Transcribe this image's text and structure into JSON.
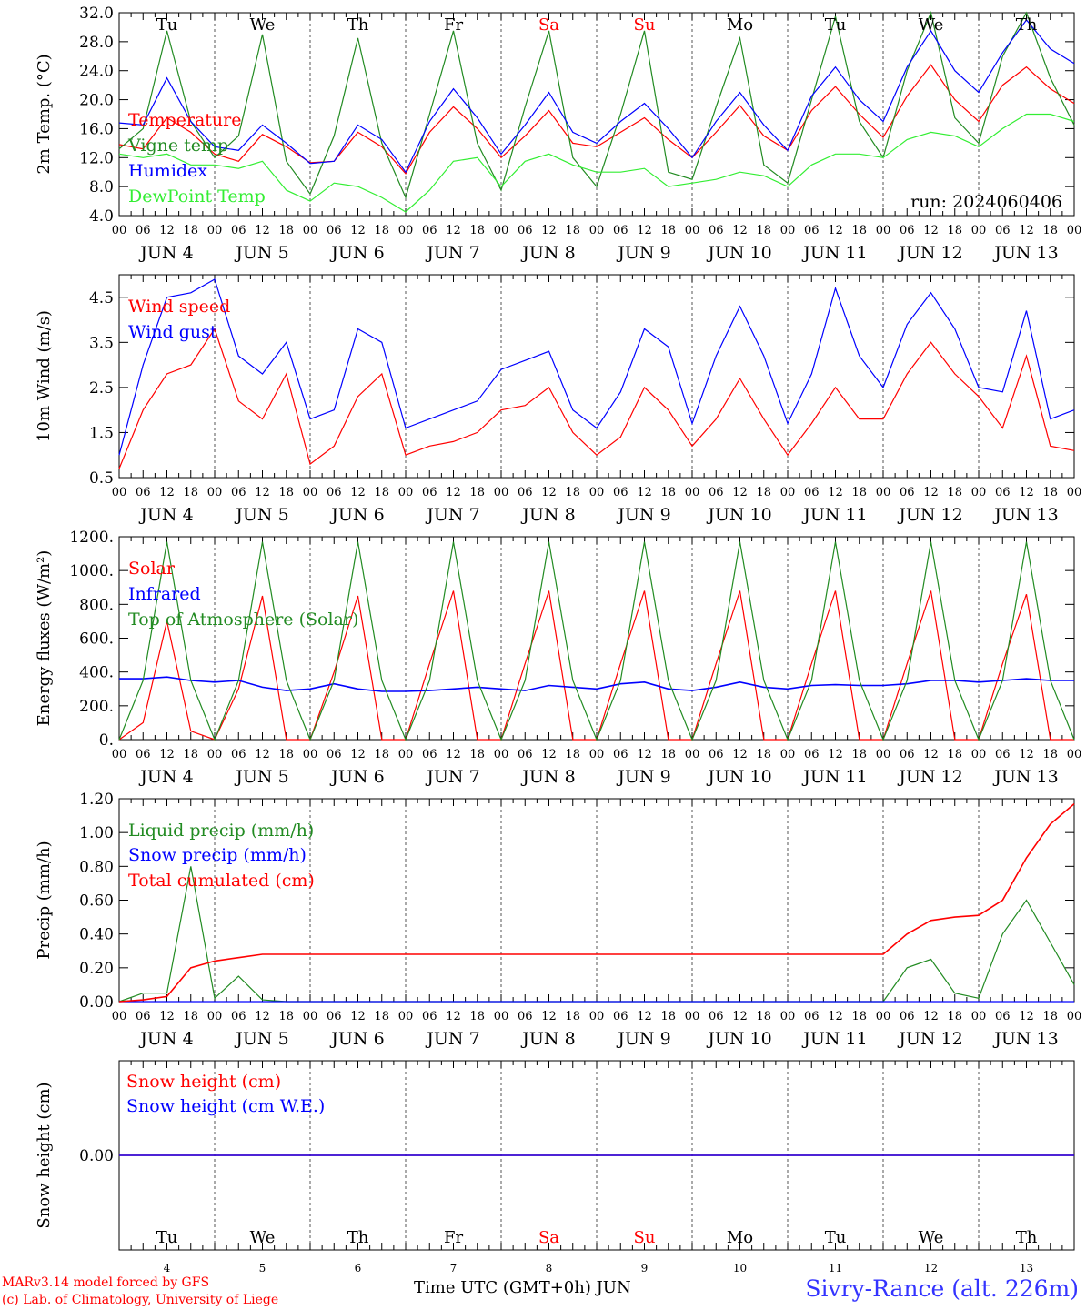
{
  "days": {
    "dates": [
      "4",
      "5",
      "6",
      "7",
      "8",
      "9",
      "10",
      "11",
      "12",
      "13"
    ],
    "weekday_labels": [
      "Tu",
      "We",
      "Th",
      "Fr",
      "Sa",
      "Su",
      "Mo",
      "Tu",
      "We",
      "Th"
    ],
    "weekday_colors": [
      "#000000",
      "#000000",
      "#000000",
      "#000000",
      "#ff0000",
      "#ff0000",
      "#000000",
      "#000000",
      "#000000",
      "#000000"
    ],
    "hour_ticks": [
      "00",
      "06",
      "12",
      "18"
    ],
    "month": "JUN",
    "final_hour_label": "00"
  },
  "colors": {
    "red": "#ff0000",
    "green": "#228b22",
    "blue": "#0000ff",
    "lightgreen": "#33ee33",
    "purple": "#800080",
    "grid": "#555555"
  },
  "chart_data": [
    {
      "type": "line",
      "ylabel": "2m Temp. (°C)",
      "ylim": [
        4.0,
        32.0
      ],
      "yticks": [
        "4.0",
        "8.0",
        "12.0",
        "16.0",
        "20.0",
        "24.0",
        "28.0",
        "32.0"
      ],
      "run_label": "run: 2024060406",
      "x_hours": [
        0,
        6,
        12,
        18,
        24,
        30,
        36,
        42,
        48,
        54,
        60,
        66,
        72,
        78,
        84,
        90,
        96,
        102,
        108,
        114,
        120,
        126,
        132,
        138,
        144,
        150,
        156,
        162,
        168,
        174,
        180,
        186,
        192,
        198,
        204,
        210,
        216,
        222,
        228,
        234,
        240
      ],
      "series": [
        {
          "name": "Temperature",
          "color": "#ff0000",
          "values": [
            13.8,
            13.2,
            17.5,
            15.5,
            12.5,
            11.5,
            15.2,
            13.5,
            11.3,
            11.5,
            15.5,
            13.5,
            9.8,
            15.5,
            19.0,
            16.0,
            12.0,
            15.0,
            18.5,
            14.0,
            13.5,
            15.5,
            17.5,
            14.5,
            12.0,
            15.5,
            19.2,
            15.0,
            13.0,
            18.5,
            21.8,
            18.0,
            14.8,
            20.5,
            24.8,
            20.0,
            17.0,
            22.0,
            24.5,
            21.5,
            19.5
          ]
        },
        {
          "name": "Vigne temp",
          "color": "#228b22",
          "values": [
            13.2,
            16.0,
            29.5,
            17.0,
            12.0,
            15.0,
            29.0,
            11.5,
            7.0,
            15.0,
            28.5,
            14.0,
            6.5,
            18.0,
            29.5,
            14.0,
            7.5,
            19.0,
            29.5,
            12.0,
            8.0,
            18.0,
            29.5,
            10.0,
            9.0,
            19.0,
            28.5,
            11.0,
            8.5,
            20.0,
            31.5,
            17.0,
            12.0,
            24.0,
            32.0,
            17.5,
            14.0,
            26.0,
            32.0,
            23.0,
            16.5
          ]
        },
        {
          "name": "Humidex",
          "color": "#0000ff",
          "values": [
            16.8,
            16.5,
            23.0,
            17.0,
            13.5,
            13.0,
            16.5,
            14.0,
            11.2,
            11.5,
            16.5,
            14.5,
            10.0,
            17.0,
            21.5,
            17.5,
            12.5,
            16.5,
            21.0,
            15.5,
            14.0,
            17.0,
            19.5,
            16.0,
            12.0,
            17.0,
            21.0,
            16.5,
            13.0,
            20.5,
            24.5,
            20.0,
            17.0,
            24.5,
            29.5,
            24.0,
            21.0,
            26.5,
            31.0,
            27.0,
            25.0
          ]
        },
        {
          "name": "DewPoint Temp",
          "color": "#33ee33",
          "values": [
            12.5,
            12.0,
            12.5,
            11.0,
            11.0,
            10.5,
            11.5,
            7.5,
            6.0,
            8.5,
            8.0,
            6.5,
            4.5,
            7.5,
            11.5,
            12.0,
            8.0,
            11.5,
            12.5,
            11.0,
            10.0,
            10.0,
            10.5,
            8.0,
            8.5,
            9.0,
            10.0,
            9.5,
            8.0,
            11.0,
            12.5,
            12.5,
            12.0,
            14.5,
            15.5,
            15.0,
            13.5,
            16.0,
            18.0,
            18.0,
            17.0
          ]
        }
      ]
    },
    {
      "type": "line",
      "ylabel": "10m Wind (m/s)",
      "ylim": [
        0.5,
        5.0
      ],
      "yticks": [
        "0.5",
        "1.5",
        "2.5",
        "3.5",
        "4.5"
      ],
      "x_hours": [
        0,
        6,
        12,
        18,
        24,
        30,
        36,
        42,
        48,
        54,
        60,
        66,
        72,
        78,
        84,
        90,
        96,
        102,
        108,
        114,
        120,
        126,
        132,
        138,
        144,
        150,
        156,
        162,
        168,
        174,
        180,
        186,
        192,
        198,
        204,
        210,
        216,
        222,
        228,
        234,
        240
      ],
      "series": [
        {
          "name": "Wind speed",
          "color": "#ff0000",
          "values": [
            0.7,
            2.0,
            2.8,
            3.0,
            3.8,
            2.2,
            1.8,
            2.8,
            0.8,
            1.2,
            2.3,
            2.8,
            1.0,
            1.2,
            1.3,
            1.5,
            2.0,
            2.1,
            2.5,
            1.5,
            1.0,
            1.4,
            2.5,
            2.0,
            1.2,
            1.8,
            2.7,
            1.8,
            1.0,
            1.7,
            2.5,
            1.8,
            1.8,
            2.8,
            3.5,
            2.8,
            2.3,
            1.6,
            3.2,
            1.2,
            1.1
          ]
        },
        {
          "name": "Wind gust",
          "color": "#0000ff",
          "values": [
            1.0,
            3.0,
            4.5,
            4.6,
            4.9,
            3.2,
            2.8,
            3.5,
            1.8,
            2.0,
            3.8,
            3.5,
            1.6,
            1.8,
            2.0,
            2.2,
            2.9,
            3.1,
            3.3,
            2.0,
            1.6,
            2.4,
            3.8,
            3.4,
            1.7,
            3.2,
            4.3,
            3.2,
            1.7,
            2.8,
            4.7,
            3.2,
            2.5,
            3.9,
            4.6,
            3.8,
            2.5,
            2.4,
            4.2,
            1.8,
            2.0
          ]
        }
      ]
    },
    {
      "type": "line",
      "ylabel": "Energy fluxes (W/m²)",
      "ylim": [
        0,
        1200
      ],
      "yticks": [
        "0.",
        "200.",
        "400.",
        "600.",
        "800.",
        "1000.",
        "1200."
      ],
      "x_hours": [
        0,
        6,
        12,
        18,
        24,
        30,
        36,
        42,
        48,
        54,
        60,
        66,
        72,
        78,
        84,
        90,
        96,
        102,
        108,
        114,
        120,
        126,
        132,
        138,
        144,
        150,
        156,
        162,
        168,
        174,
        180,
        186,
        192,
        198,
        204,
        210,
        216,
        222,
        228,
        234,
        240
      ],
      "series": [
        {
          "name": "Solar",
          "color": "#ff0000",
          "values": [
            0,
            100,
            700,
            50,
            0,
            300,
            850,
            0,
            0,
            400,
            850,
            0,
            0,
            450,
            880,
            0,
            0,
            450,
            880,
            0,
            0,
            450,
            880,
            0,
            0,
            450,
            880,
            0,
            0,
            450,
            880,
            0,
            0,
            450,
            880,
            0,
            0,
            450,
            860,
            0,
            0
          ]
        },
        {
          "name": "Infrared",
          "color": "#0000ff",
          "values": [
            360,
            360,
            370,
            350,
            340,
            350,
            310,
            290,
            300,
            330,
            300,
            285,
            285,
            290,
            300,
            310,
            300,
            290,
            320,
            310,
            300,
            330,
            340,
            300,
            290,
            310,
            340,
            310,
            300,
            320,
            325,
            320,
            320,
            330,
            350,
            350,
            340,
            350,
            360,
            350,
            350
          ]
        },
        {
          "name": "Top of Atmosphere (Solar)",
          "color": "#228b22",
          "values": [
            0,
            350,
            1170,
            350,
            0,
            350,
            1170,
            350,
            0,
            350,
            1170,
            350,
            0,
            350,
            1170,
            350,
            0,
            350,
            1170,
            350,
            0,
            350,
            1170,
            350,
            0,
            350,
            1170,
            350,
            0,
            350,
            1170,
            350,
            0,
            350,
            1170,
            350,
            0,
            350,
            1170,
            350,
            0
          ]
        }
      ]
    },
    {
      "type": "line",
      "ylabel": "Precip (mm/h)",
      "ylim": [
        0.0,
        1.2
      ],
      "yticks": [
        "0.00",
        "0.20",
        "0.40",
        "0.60",
        "0.80",
        "1.00",
        "1.20"
      ],
      "x_hours": [
        0,
        6,
        12,
        18,
        24,
        30,
        36,
        42,
        48,
        54,
        60,
        66,
        72,
        78,
        84,
        90,
        96,
        102,
        108,
        114,
        120,
        126,
        132,
        138,
        144,
        150,
        156,
        162,
        168,
        174,
        180,
        186,
        192,
        198,
        204,
        210,
        216,
        222,
        228,
        234,
        240
      ],
      "series": [
        {
          "name": "Liquid precip (mm/h)",
          "color": "#228b22",
          "values": [
            0,
            0.05,
            0.05,
            0.8,
            0.02,
            0.15,
            0.01,
            0,
            0,
            0,
            0,
            0,
            0,
            0,
            0,
            0,
            0,
            0,
            0,
            0,
            0,
            0,
            0,
            0,
            0,
            0,
            0,
            0,
            0,
            0,
            0,
            0,
            0,
            0.2,
            0.25,
            0.05,
            0.02,
            0.4,
            0.6,
            0.35,
            0.1
          ]
        },
        {
          "name": "Snow precip (mm/h)",
          "color": "#0000ff",
          "values": [
            0,
            0,
            0,
            0,
            0,
            0,
            0,
            0,
            0,
            0,
            0,
            0,
            0,
            0,
            0,
            0,
            0,
            0,
            0,
            0,
            0,
            0,
            0,
            0,
            0,
            0,
            0,
            0,
            0,
            0,
            0,
            0,
            0,
            0,
            0,
            0,
            0,
            0,
            0,
            0,
            0
          ]
        },
        {
          "name": "Total cumulated (cm)",
          "color": "#ff0000",
          "values": [
            0,
            0.01,
            0.03,
            0.2,
            0.24,
            0.26,
            0.28,
            0.28,
            0.28,
            0.28,
            0.28,
            0.28,
            0.28,
            0.28,
            0.28,
            0.28,
            0.28,
            0.28,
            0.28,
            0.28,
            0.28,
            0.28,
            0.28,
            0.28,
            0.28,
            0.28,
            0.28,
            0.28,
            0.28,
            0.28,
            0.28,
            0.28,
            0.28,
            0.4,
            0.48,
            0.5,
            0.51,
            0.6,
            0.85,
            1.05,
            1.17
          ]
        }
      ]
    },
    {
      "type": "line",
      "ylabel": "Snow height (cm)",
      "ylim": [
        -1.0,
        1.0
      ],
      "yticks": [
        "0.00"
      ],
      "x_hours": [
        0,
        240
      ],
      "series": [
        {
          "name": "Snow height (cm)",
          "color": "#ff0000",
          "values": [
            0,
            0
          ]
        },
        {
          "name": "Snow height (cm W.E.)",
          "color": "#0000ff",
          "values": [
            0,
            0
          ]
        }
      ]
    }
  ],
  "footer": {
    "model": "MARv3.14 model forced by GFS",
    "credit": "(c) Lab. of Climatology, University of Liege",
    "time_label": "Time UTC (GMT+0h) JUN",
    "station": "Sivry-Rance (alt. 226m)"
  }
}
